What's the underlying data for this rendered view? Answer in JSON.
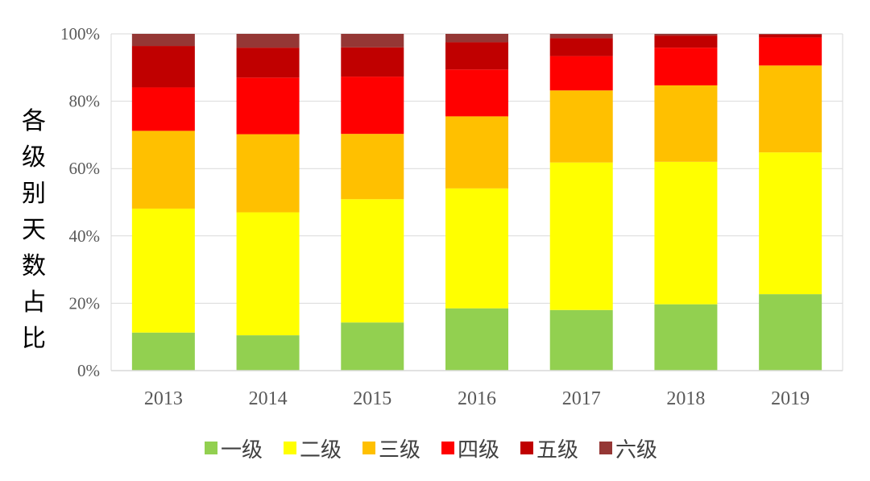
{
  "chart_data": {
    "type": "bar",
    "stacked": true,
    "percent_stacked": true,
    "categories": [
      "2013",
      "2014",
      "2015",
      "2016",
      "2017",
      "2018",
      "2019"
    ],
    "series": [
      {
        "name": "一级",
        "color": "#92D050",
        "values": [
          11.3,
          10.5,
          14.3,
          18.5,
          18.0,
          19.7,
          22.7
        ]
      },
      {
        "name": "二级",
        "color": "#FFFF00",
        "values": [
          36.8,
          36.5,
          36.6,
          35.6,
          43.8,
          42.3,
          42.1
        ]
      },
      {
        "name": "三级",
        "color": "#FFC000",
        "values": [
          23.1,
          23.2,
          19.4,
          21.4,
          21.4,
          22.7,
          25.8
        ]
      },
      {
        "name": "四级",
        "color": "#FF0000",
        "values": [
          12.9,
          16.8,
          17.0,
          13.9,
          10.2,
          11.2,
          8.3
        ]
      },
      {
        "name": "五级",
        "color": "#C00000",
        "values": [
          12.3,
          8.9,
          8.7,
          8.1,
          5.3,
          3.6,
          0.9
        ]
      },
      {
        "name": "六级",
        "color": "#953735",
        "values": [
          3.6,
          4.1,
          4.0,
          2.5,
          1.3,
          0.5,
          0.2
        ]
      }
    ],
    "title": "",
    "xlabel": "",
    "ylabel": "各级别天数占比",
    "ylim": [
      0,
      100
    ],
    "yticks": [
      "0%",
      "20%",
      "40%",
      "60%",
      "80%",
      "100%"
    ],
    "ytick_values": [
      0,
      20,
      40,
      60,
      80,
      100
    ],
    "grid": true,
    "legend_position": "bottom"
  }
}
